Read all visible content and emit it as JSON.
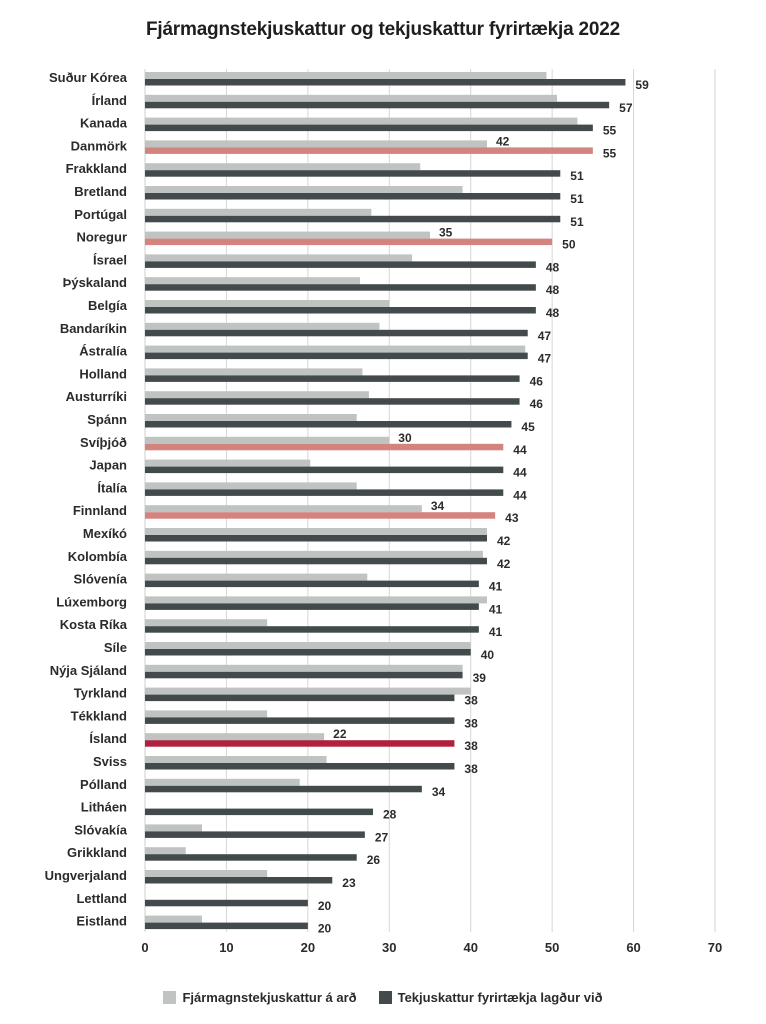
{
  "chart_data": {
    "type": "bar",
    "orientation": "horizontal",
    "title": "Fjármagnstekjuskattur og tekjuskattur fyrirtækja 2022",
    "xlabel": "",
    "ylabel": "",
    "xlim": [
      0,
      70
    ],
    "xticks": [
      0,
      10,
      20,
      30,
      40,
      50,
      60,
      70
    ],
    "grid": true,
    "legend_position": "bottom-center",
    "categories": [
      "Suður Kórea",
      "Írland",
      "Kanada",
      "Danmörk",
      "Frakkland",
      "Bretland",
      "Portúgal",
      "Noregur",
      "Ísrael",
      "Þýskaland",
      "Belgía",
      "Bandaríkin",
      "Ástralía",
      "Holland",
      "Austurríki",
      "Spánn",
      "Svíþjóð",
      "Japan",
      "Ítalía",
      "Finnland",
      "Mexíkó",
      "Kolombía",
      "Slóvenía",
      "Lúxemborg",
      "Kosta Ríka",
      "Síle",
      "Nýja Sjáland",
      "Tyrkland",
      "Tékkland",
      "Ísland",
      "Sviss",
      "Pólland",
      "Litháen",
      "Slóvakía",
      "Grikkland",
      "Ungverjaland",
      "Lettland",
      "Eistland"
    ],
    "series": [
      {
        "name": "Fjármagnstekjuskattur á arð",
        "color": "#bfc3c2",
        "values": [
          49.3,
          50.6,
          53.1,
          42,
          33.8,
          39,
          27.8,
          35,
          32.8,
          26.4,
          30,
          28.8,
          46.7,
          26.7,
          27.5,
          26,
          30,
          20.3,
          26,
          34,
          42,
          41.5,
          27.3,
          42,
          15,
          40,
          39,
          40,
          15,
          22,
          22.3,
          19,
          0,
          7,
          5,
          15,
          0,
          7
        ],
        "labels_shown_for": [
          "Danmörk",
          "Noregur",
          "Svíþjóð",
          "Finnland",
          "Ísland"
        ]
      },
      {
        "name": "Tekjuskattur fyrirtækja lagður við",
        "color": "#434a4c",
        "values": [
          59,
          57,
          55,
          55,
          51,
          51,
          51,
          50,
          48,
          48,
          48,
          47,
          47,
          46,
          46,
          45,
          44,
          44,
          44,
          43,
          42,
          42,
          41,
          41,
          41,
          40,
          39,
          38,
          38,
          38,
          38,
          34,
          28,
          27,
          26,
          23,
          20,
          20
        ]
      }
    ],
    "highlights": {
      "Danmörk": "#d4847f",
      "Noregur": "#d4847f",
      "Svíþjóð": "#d4847f",
      "Finnland": "#d4847f",
      "Ísland": "#b0213f"
    },
    "value_labels": {
      "dividend": [
        "",
        "",
        "",
        "42",
        "",
        "",
        "",
        "35",
        "",
        "",
        "",
        "",
        "",
        "",
        "",
        "",
        "30",
        "",
        "",
        "34",
        "",
        "",
        "",
        "",
        "",
        "",
        "",
        "",
        "",
        "22",
        "",
        "",
        "",
        "",
        "",
        "",
        "",
        ""
      ],
      "corporate": [
        "59",
        "57",
        "55",
        "55",
        "51",
        "51",
        "51",
        "50",
        "48",
        "48",
        "48",
        "47",
        "47",
        "46",
        "46",
        "45",
        "44",
        "44",
        "44",
        "43",
        "42",
        "42",
        "41",
        "41",
        "41",
        "40",
        "39",
        "38",
        "38",
        "38",
        "38",
        "34",
        "28",
        "27",
        "26",
        "23",
        "20",
        "20"
      ]
    },
    "tick_labels": [
      "0",
      "10",
      "20",
      "30",
      "40",
      "50",
      "60",
      "70"
    ]
  },
  "legend": [
    {
      "label": "Fjármagnstekjuskattur á arð",
      "color": "#bfc3c2"
    },
    {
      "label": "Tekjuskattur fyrirtækja lagður við",
      "color": "#434a4c"
    }
  ]
}
